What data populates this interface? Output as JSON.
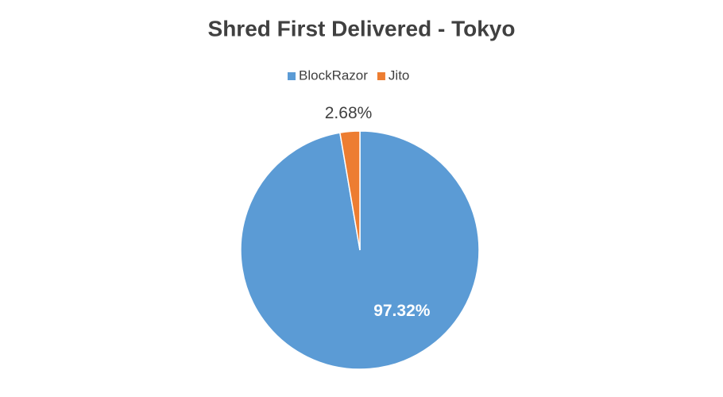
{
  "chart_data": {
    "type": "pie",
    "title": "Shred First Delivered - Tokyo",
    "categories": [
      "BlockRazor",
      "Jito"
    ],
    "values": [
      97.32,
      2.68
    ],
    "value_labels": [
      "97.32%",
      "2.68%"
    ],
    "colors": [
      "#5b9bd5",
      "#ed7d31"
    ],
    "legend": "top"
  }
}
